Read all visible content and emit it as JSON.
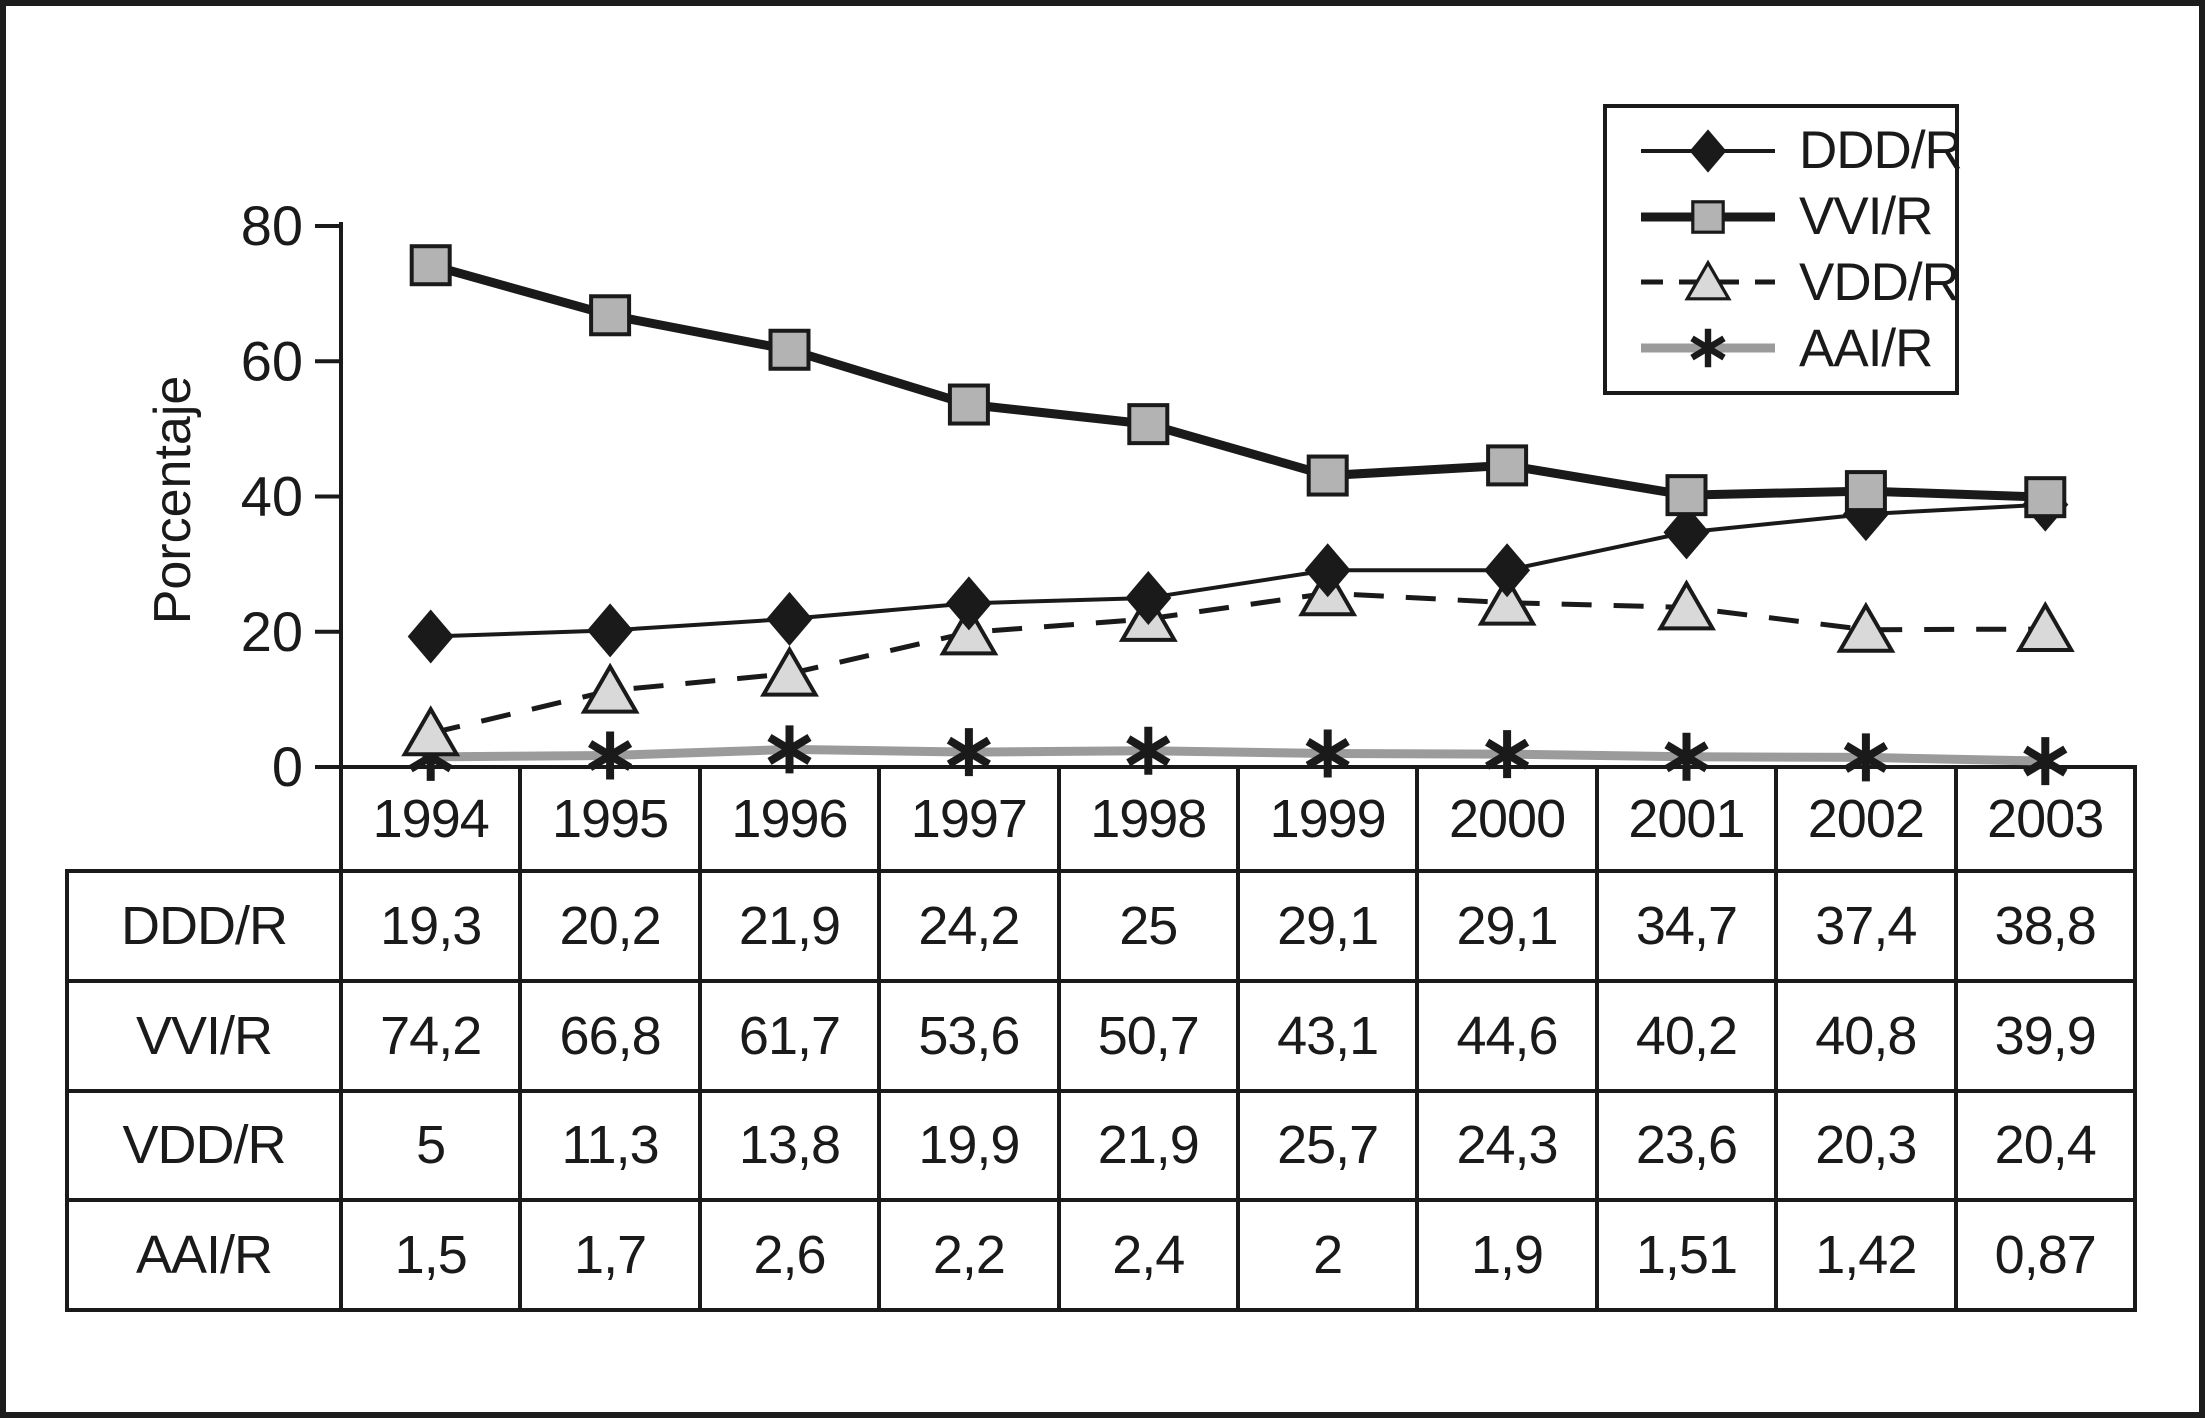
{
  "figure": {
    "background": "#ffffff",
    "border_color": "#1c1c1c"
  },
  "colors": {
    "ink": "#1a1a1a",
    "square_fill": "#b3b3b3",
    "triangle_fill": "#d9d9d9",
    "gray_line": "#9b9b9b"
  },
  "chart_data": {
    "type": "line",
    "title": "",
    "xlabel": "",
    "ylabel": "Porcentaje",
    "x": [
      1994,
      1995,
      1996,
      1997,
      1998,
      1999,
      2000,
      2001,
      2002,
      2003
    ],
    "ylim": [
      0,
      80
    ],
    "yticks": [
      0,
      20,
      40,
      60,
      80
    ],
    "grid": false,
    "legend_position": "top-right",
    "series": [
      {
        "name": "DDD/R",
        "marker": "diamond",
        "line_style": "solid",
        "line_width": "thin",
        "color": "#1a1a1a",
        "marker_fill": "#1a1a1a",
        "values": [
          19.3,
          20.2,
          21.9,
          24.2,
          25,
          29.1,
          29.1,
          34.7,
          37.4,
          38.8
        ]
      },
      {
        "name": "VVI/R",
        "marker": "square",
        "line_style": "solid",
        "line_width": "thick",
        "color": "#1a1a1a",
        "marker_fill": "#b3b3b3",
        "values": [
          74.2,
          66.8,
          61.7,
          53.6,
          50.7,
          43.1,
          44.6,
          40.2,
          40.8,
          39.9
        ]
      },
      {
        "name": "VDD/R",
        "marker": "triangle",
        "line_style": "dashed",
        "line_width": "medium",
        "color": "#1a1a1a",
        "marker_fill": "#d9d9d9",
        "values": [
          5,
          11.3,
          13.8,
          19.9,
          21.9,
          25.7,
          24.3,
          23.6,
          20.3,
          20.4
        ]
      },
      {
        "name": "AAI/R",
        "marker": "asterisk",
        "line_style": "solid",
        "line_width": "thick",
        "color": "#9b9b9b",
        "marker_fill": "#1a1a1a",
        "values": [
          1.5,
          1.7,
          2.6,
          2.2,
          2.4,
          2,
          1.9,
          1.51,
          1.42,
          0.87
        ]
      }
    ]
  },
  "table": {
    "years": [
      "1994",
      "1995",
      "1996",
      "1997",
      "1998",
      "1999",
      "2000",
      "2001",
      "2002",
      "2003"
    ],
    "rows": [
      {
        "label": "DDD/R",
        "values": [
          "19,3",
          "20,2",
          "21,9",
          "24,2",
          "25",
          "29,1",
          "29,1",
          "34,7",
          "37,4",
          "38,8"
        ]
      },
      {
        "label": "VVI/R",
        "values": [
          "74,2",
          "66,8",
          "61,7",
          "53,6",
          "50,7",
          "43,1",
          "44,6",
          "40,2",
          "40,8",
          "39,9"
        ]
      },
      {
        "label": "VDD/R",
        "values": [
          "5",
          "11,3",
          "13,8",
          "19,9",
          "21,9",
          "25,7",
          "24,3",
          "23,6",
          "20,3",
          "20,4"
        ]
      },
      {
        "label": "AAI/R",
        "values": [
          "1,5",
          "1,7",
          "2,6",
          "2,2",
          "2,4",
          "2",
          "1,9",
          "1,51",
          "1,42",
          "0,87"
        ]
      }
    ]
  }
}
